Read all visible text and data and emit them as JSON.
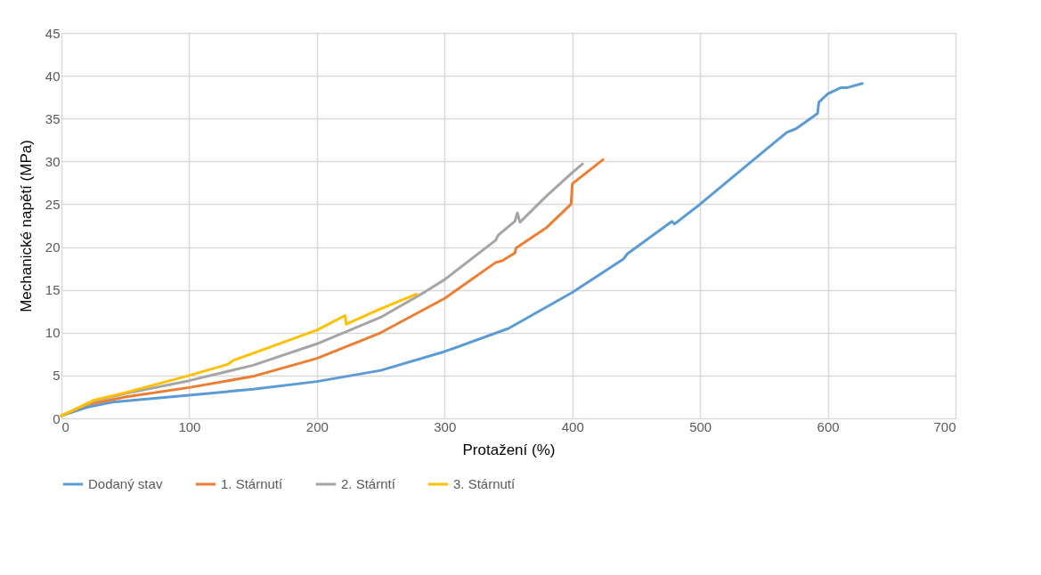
{
  "chart_data": {
    "type": "line",
    "xlabel": "Protažení (%)",
    "ylabel": "Mechanické napětí (MPa)",
    "xlim": [
      0,
      700
    ],
    "xticks": [
      0,
      100,
      200,
      300,
      400,
      500,
      600,
      700
    ],
    "ylim": [
      0,
      45
    ],
    "yticks": [
      0,
      5,
      10,
      15,
      20,
      25,
      30,
      35,
      40,
      45
    ],
    "grid": true,
    "legend": "bottom",
    "marker": "none",
    "line_style": "solid",
    "series": [
      {
        "name": "Dodaný stav",
        "color": "#5b9bd5",
        "x": [
          0,
          20,
          40,
          100,
          150,
          200,
          250,
          300,
          350,
          400,
          440,
          443,
          478,
          480,
          500,
          550,
          568,
          575,
          592,
          593,
          600,
          610,
          615,
          627
        ],
        "values": [
          0.3,
          1.3,
          1.9,
          2.7,
          3.4,
          4.3,
          5.6,
          7.8,
          10.5,
          14.7,
          18.6,
          19.2,
          23.0,
          22.7,
          25.0,
          31.2,
          33.4,
          33.8,
          35.6,
          36.9,
          37.9,
          38.6,
          38.6,
          39.1
        ]
      },
      {
        "name": "1. Stárnutí",
        "color": "#ed7d31",
        "x": [
          0,
          20,
          50,
          100,
          150,
          200,
          250,
          300,
          340,
          345,
          355,
          356,
          360,
          380,
          399,
          400,
          424
        ],
        "values": [
          0.3,
          1.6,
          2.5,
          3.6,
          4.9,
          7.0,
          10.0,
          14.0,
          18.2,
          18.4,
          19.3,
          19.9,
          20.3,
          22.3,
          25.0,
          27.4,
          30.2
        ]
      },
      {
        "name": "2. Stárntí",
        "color": "#a5a5a5",
        "x": [
          0,
          25,
          50,
          100,
          150,
          200,
          250,
          285,
          300,
          340,
          342,
          355,
          357,
          359,
          380,
          400,
          408
        ],
        "values": [
          0.3,
          2.0,
          2.9,
          4.4,
          6.2,
          8.7,
          11.8,
          14.8,
          16.2,
          20.8,
          21.4,
          23.0,
          24.0,
          22.9,
          26.0,
          28.7,
          29.7
        ]
      },
      {
        "name": "3. Stárnutí",
        "color": "#ffc000",
        "x": [
          0,
          25,
          50,
          100,
          130,
          135,
          150,
          200,
          222,
          223,
          250,
          278
        ],
        "values": [
          0.3,
          2.1,
          3.0,
          5.0,
          6.3,
          6.8,
          7.6,
          10.3,
          12.0,
          11.0,
          12.8,
          14.5
        ]
      }
    ]
  }
}
